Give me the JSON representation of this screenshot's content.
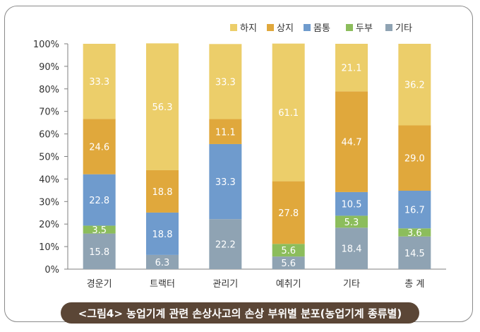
{
  "chart_data": {
    "type": "bar",
    "stacked": true,
    "categories": [
      "경운기",
      "트랙터",
      "관리기",
      "예취기",
      "기타",
      "총 계"
    ],
    "series": [
      {
        "name": "기타",
        "color": "#8fa3b3",
        "values": [
          15.8,
          6.3,
          22.2,
          5.6,
          18.4,
          14.5
        ]
      },
      {
        "name": "두부",
        "color": "#8cbd5c",
        "values": [
          3.5,
          0,
          0,
          5.6,
          5.3,
          3.6
        ]
      },
      {
        "name": "몸통",
        "color": "#6f9bcd",
        "values": [
          22.8,
          18.8,
          33.3,
          0,
          10.5,
          16.7
        ]
      },
      {
        "name": "상지",
        "color": "#e0a83c",
        "values": [
          24.6,
          18.8,
          11.1,
          27.8,
          44.7,
          29.0
        ]
      },
      {
        "name": "하지",
        "color": "#ecce6a",
        "values": [
          33.3,
          56.3,
          33.3,
          61.1,
          21.1,
          36.2
        ]
      }
    ],
    "legend_order": [
      "하지",
      "상지",
      "몸통",
      "두부",
      "기타"
    ],
    "legend_position": "top-right",
    "ylim": [
      0,
      100
    ],
    "yticks": [
      "0%",
      "10%",
      "20%",
      "30%",
      "40%",
      "50%",
      "60%",
      "70%",
      "80%",
      "90%",
      "100%"
    ],
    "grid": false,
    "title": "<그림4> 농업기계 관련 손상사고의 손상 부위별 분포(농업기계 종류별)"
  }
}
